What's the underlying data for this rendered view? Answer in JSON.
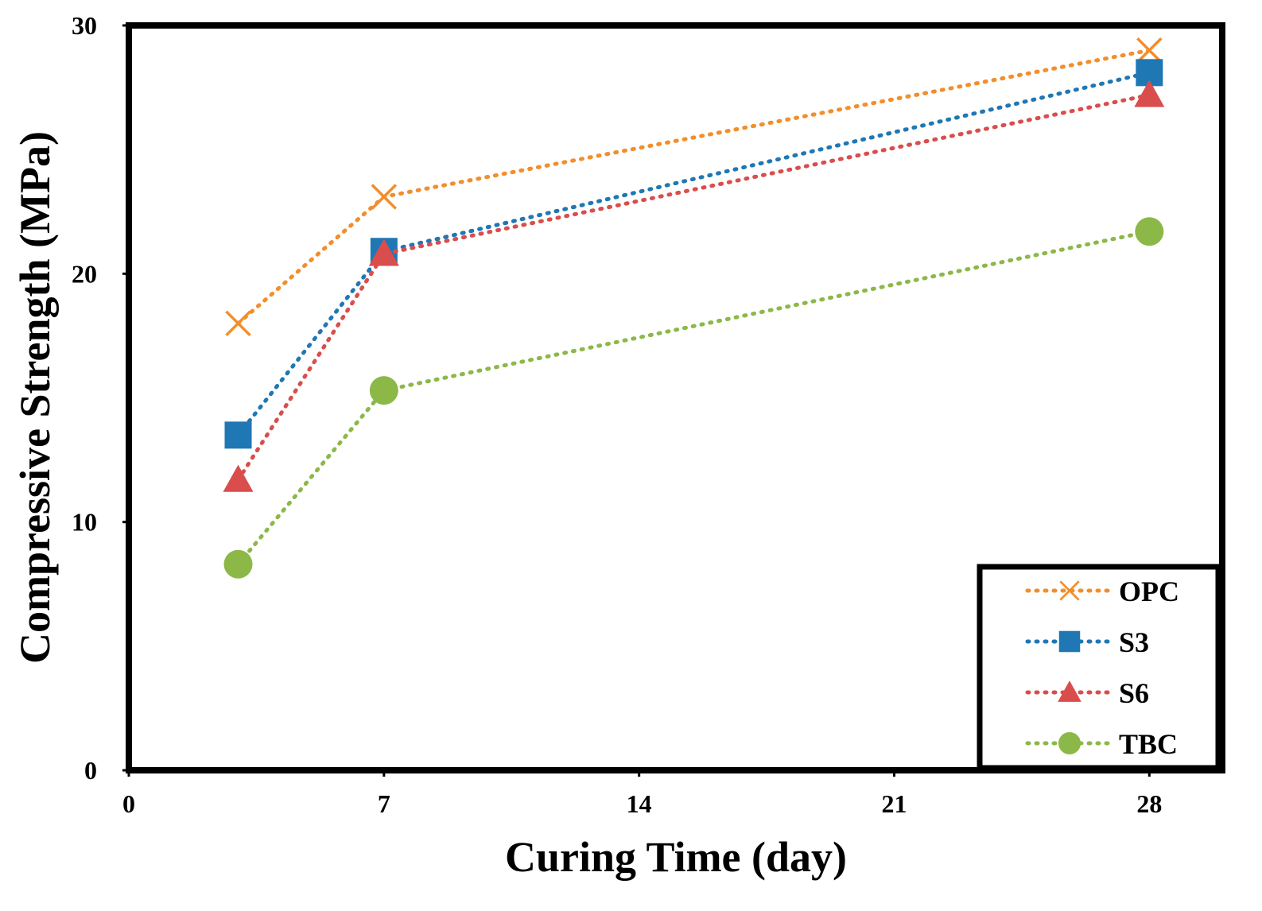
{
  "chart_data": {
    "type": "line",
    "title": "",
    "xlabel": "Curing Time (day)",
    "ylabel": "Compressive Strength (MPa)",
    "xlim": [
      0,
      30
    ],
    "ylim": [
      0,
      30
    ],
    "xticks": [
      0,
      7,
      14,
      21,
      28
    ],
    "yticks": [
      0,
      10,
      20,
      30
    ],
    "grid": false,
    "legend_position": "bottom-right",
    "line_style": "dotted",
    "x": [
      3,
      7,
      28
    ],
    "series": [
      {
        "name": "OPC",
        "marker": "x",
        "color": "#F28E2B",
        "values": [
          18.0,
          23.1,
          29.0
        ]
      },
      {
        "name": "S3",
        "marker": "square",
        "color": "#1F77B4",
        "values": [
          13.5,
          20.9,
          28.1
        ]
      },
      {
        "name": "S6",
        "marker": "triangle",
        "color": "#D94D4D",
        "values": [
          11.7,
          20.8,
          27.2
        ]
      },
      {
        "name": "TBC",
        "marker": "circle",
        "color": "#8CB848",
        "values": [
          8.3,
          15.3,
          21.7
        ]
      }
    ]
  }
}
